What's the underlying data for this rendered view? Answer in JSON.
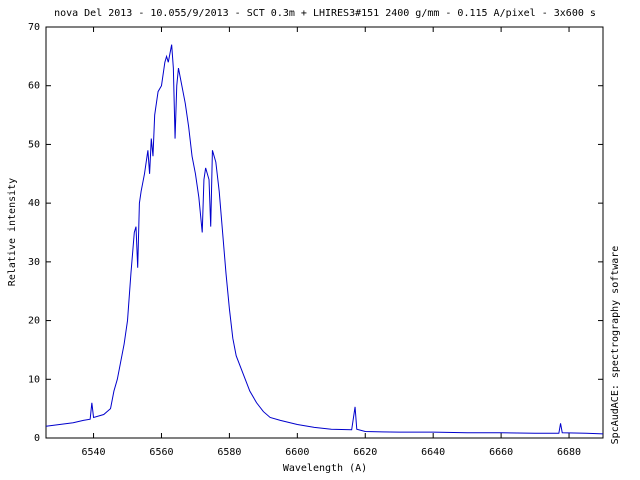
{
  "chart_data": {
    "type": "line",
    "title": "nova Del 2013 - 10.055/9/2013 - SCT 0.3m + LHIRES3#151 2400 g/mm - 0.115 A/pixel - 3x600 s",
    "x_label": "Wavelength (A)",
    "y_label": "Relative intensity",
    "side_label": "SpcAudACE: spectrography software",
    "xlim": [
      6526,
      6690
    ],
    "ylim": [
      0,
      70
    ],
    "xticks": [
      6540,
      6560,
      6580,
      6600,
      6620,
      6640,
      6660,
      6680
    ],
    "yticks": [
      0,
      10,
      20,
      30,
      40,
      50,
      60,
      70
    ],
    "grid": false,
    "x": [
      6526,
      6530,
      6534,
      6537,
      6539,
      6539.5,
      6540,
      6543,
      6545,
      6546,
      6547,
      6548,
      6549,
      6550,
      6551,
      6552,
      6552.5,
      6553,
      6553.5,
      6554,
      6555,
      6556,
      6556.5,
      6557,
      6557.5,
      6558,
      6559,
      6560,
      6561,
      6561.5,
      6562,
      6563,
      6563.5,
      6564,
      6564.5,
      6565,
      6566,
      6567,
      6568,
      6569,
      6570,
      6571,
      6572,
      6572.5,
      6573,
      6574,
      6574.5,
      6575,
      6576,
      6577,
      6578,
      6579,
      6580,
      6581,
      6582,
      6584,
      6586,
      6588,
      6590,
      6592,
      6595,
      6600,
      6605,
      6610,
      6616,
      6617,
      6617.5,
      6620,
      6630,
      6640,
      6650,
      6660,
      6670,
      6677,
      6677.5,
      6678,
      6685,
      6690
    ],
    "series": [
      {
        "color": "#0000cc",
        "values": [
          2.0,
          2.3,
          2.6,
          3.0,
          3.2,
          6.0,
          3.5,
          4.0,
          5.0,
          8.0,
          10,
          13,
          16,
          20,
          28,
          35,
          36,
          29,
          40,
          42,
          45,
          49,
          45,
          51,
          48,
          55,
          59,
          60,
          64,
          65,
          64,
          67,
          63,
          51,
          60,
          63,
          60,
          57,
          53,
          48,
          45,
          41,
          35,
          44,
          46,
          44,
          36,
          49,
          47,
          42,
          35,
          28,
          22,
          17,
          14,
          11,
          8,
          6,
          4.5,
          3.5,
          3.0,
          2.3,
          1.8,
          1.5,
          1.4,
          5.3,
          1.5,
          1.1,
          1.0,
          1.0,
          0.9,
          0.9,
          0.8,
          0.8,
          2.5,
          0.9,
          0.8,
          0.7
        ]
      }
    ]
  }
}
